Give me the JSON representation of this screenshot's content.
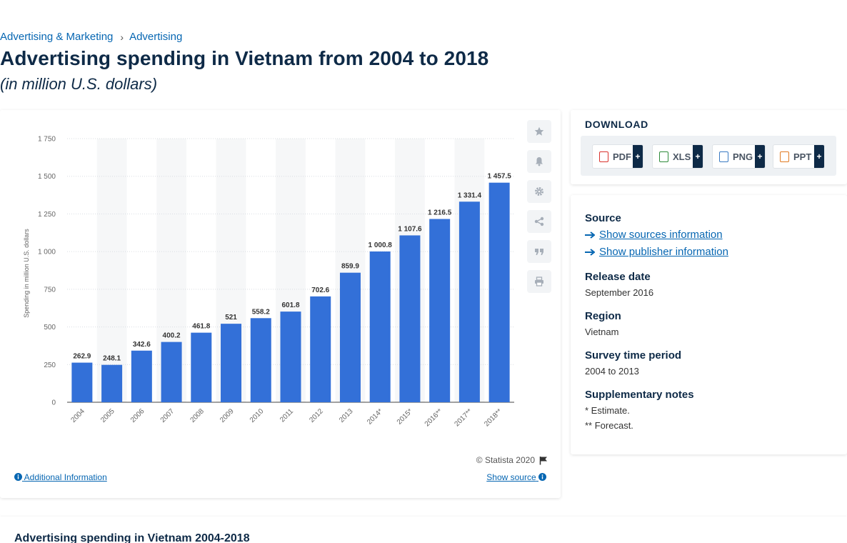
{
  "breadcrumb": {
    "items": [
      "Advertising & Marketing",
      "Advertising"
    ],
    "separator": "›"
  },
  "page": {
    "title": "Advertising spending in Vietnam from 2004 to 2018",
    "subtitle": "(in million U.S. dollars)"
  },
  "chart_data": {
    "type": "bar",
    "categories": [
      "2004",
      "2005",
      "2006",
      "2007",
      "2008",
      "2009",
      "2010",
      "2011",
      "2012",
      "2013",
      "2014*",
      "2015*",
      "2016**",
      "2017**",
      "2018**"
    ],
    "values": [
      262.9,
      248.1,
      342.6,
      400.2,
      461.8,
      521,
      558.2,
      601.8,
      702.6,
      859.9,
      1000.8,
      1107.6,
      1216.5,
      1331.4,
      1457.5
    ],
    "value_labels": [
      "262.9",
      "248.1",
      "342.6",
      "400.2",
      "461.8",
      "521",
      "558.2",
      "601.8",
      "702.6",
      "859.9",
      "1 000.8",
      "1 107.6",
      "1 216.5",
      "1 331.4",
      "1 457.5"
    ],
    "ylabel": "Spending in million U.S. dollars",
    "ylim": [
      0,
      1750
    ],
    "yticks": [
      0,
      250,
      500,
      750,
      1000,
      1250,
      1500,
      1750
    ],
    "ytick_labels": [
      "0",
      "250",
      "500",
      "750",
      "1 000",
      "1 250",
      "1 500",
      "1 750"
    ],
    "grid": true,
    "bar_color": "#3370d8"
  },
  "chart_footer": {
    "copyright": "© Statista 2020",
    "additional_info": "Additional Information",
    "show_source": "Show source"
  },
  "toolbar": {
    "icons": [
      "star-icon",
      "bell-icon",
      "gear-icon",
      "share-icon",
      "quote-icon",
      "print-icon"
    ]
  },
  "download": {
    "title": "DOWNLOAD",
    "buttons": [
      {
        "label": "PDF",
        "color": "#d9332e"
      },
      {
        "label": "XLS",
        "color": "#2e8b3a"
      },
      {
        "label": "PNG",
        "color": "#3a7ac2"
      },
      {
        "label": "PPT",
        "color": "#e07a22"
      }
    ],
    "plus": "+"
  },
  "info": {
    "source_label": "Source",
    "show_sources": "Show sources information",
    "show_publisher": "Show publisher information",
    "release_label": "Release date",
    "release_value": "September 2016",
    "region_label": "Region",
    "region_value": "Vietnam",
    "survey_label": "Survey time period",
    "survey_value": "2004 to 2013",
    "notes_label": "Supplementary notes",
    "note1": "* Estimate.",
    "note2": "** Forecast."
  },
  "bottom": {
    "title": "Advertising spending in Vietnam 2004-2018"
  }
}
